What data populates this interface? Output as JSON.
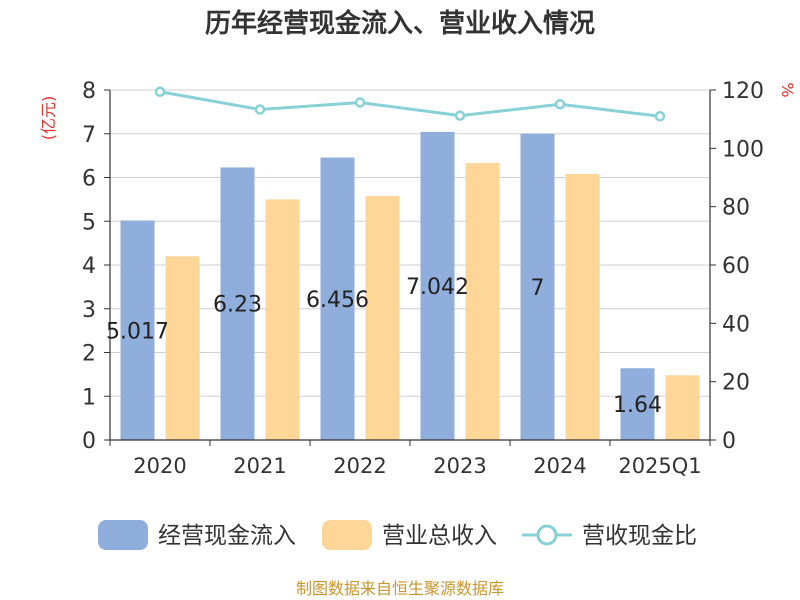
{
  "chart_data": {
    "type": "bar",
    "title": "历年经营现金流入、营业收入情况",
    "categories": [
      "2020",
      "2021",
      "2022",
      "2023",
      "2024",
      "2025Q1"
    ],
    "y_left": {
      "unit": "(亿元)",
      "min": 0,
      "max": 8,
      "ticks": [
        "0",
        "1",
        "2",
        "3",
        "4",
        "5",
        "6",
        "7",
        "8"
      ]
    },
    "y_right": {
      "unit": "%",
      "min": 0,
      "max": 120,
      "ticks": [
        "0",
        "20",
        "40",
        "60",
        "80",
        "100",
        "120"
      ]
    },
    "series": [
      {
        "name": "经营现金流入",
        "kind": "bar",
        "axis": "left",
        "color": "#8faedb",
        "values": [
          5.017,
          6.23,
          6.456,
          7.042,
          7,
          1.64
        ],
        "labels": [
          "5.017",
          "6.23",
          "6.456",
          "7.042",
          "7",
          "1.64"
        ]
      },
      {
        "name": "营业总收入",
        "kind": "bar",
        "axis": "left",
        "color": "#fdd698",
        "values": [
          4.2,
          5.5,
          5.58,
          6.33,
          6.08,
          1.48
        ]
      },
      {
        "name": "营收现金比",
        "kind": "line",
        "axis": "right",
        "color": "#88d1d6",
        "values": [
          119.4,
          113.3,
          115.7,
          111.2,
          115.1,
          111.0
        ]
      }
    ],
    "grid": true,
    "legend_position": "bottom"
  },
  "source_note": "制图数据来自恒生聚源数据库"
}
